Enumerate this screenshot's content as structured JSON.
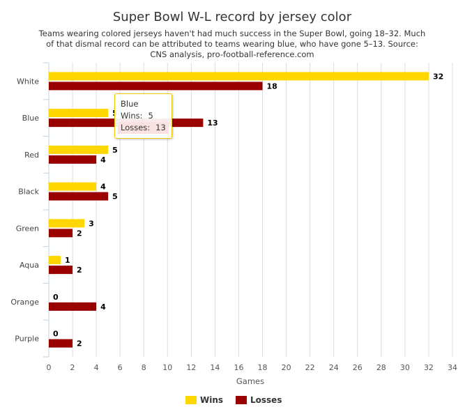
{
  "chart_data": {
    "type": "bar",
    "orientation": "horizontal",
    "title": "Super Bowl W-L record by jersey color",
    "subtitle": "Teams wearing colored jerseys haven't had much success in the Super Bowl, going 18–32. Much of that dismal record can be attributed to teams wearing blue, who have gone 5–13. Source: CNS analysis, pro-football-reference.com",
    "categories": [
      "White",
      "Blue",
      "Red",
      "Black",
      "Green",
      "Aqua",
      "Orange",
      "Purple"
    ],
    "series": [
      {
        "name": "Wins",
        "color": "#ffd700",
        "values": [
          32,
          5,
          5,
          4,
          3,
          1,
          0,
          0
        ]
      },
      {
        "name": "Losses",
        "color": "#990000",
        "values": [
          18,
          13,
          4,
          5,
          2,
          2,
          4,
          2
        ]
      }
    ],
    "xlabel": "Games",
    "xlim": [
      0,
      34
    ],
    "xticks": [
      0,
      2,
      4,
      6,
      8,
      10,
      12,
      14,
      16,
      18,
      20,
      22,
      24,
      26,
      28,
      30,
      32,
      34
    ],
    "grid": true,
    "legend_position": "bottom-center"
  },
  "tooltip": {
    "category": "Blue",
    "rows": [
      {
        "label": "Wins:",
        "value": "5"
      },
      {
        "label": "Losses:",
        "value": "13"
      }
    ]
  }
}
